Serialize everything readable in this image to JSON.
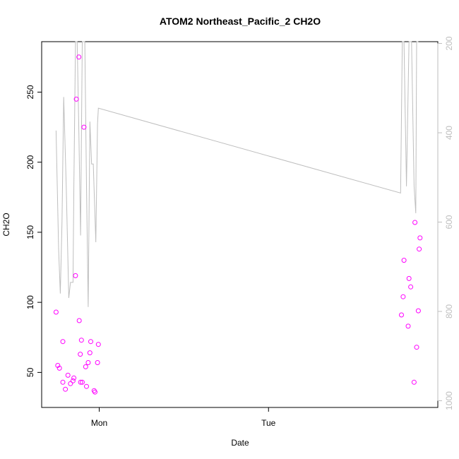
{
  "chart_data": {
    "type": "scatter",
    "title": "ATOM2 Northeast_Pacific_2 CH2O",
    "xlabel": "Date",
    "ylabel": "CH2O",
    "x_ticks": [
      {
        "label": "Mon",
        "value": 0
      },
      {
        "label": "Tue",
        "value": 1
      }
    ],
    "xlim": [
      -0.34,
      2.0
    ],
    "ylim": [
      25,
      286
    ],
    "y_ticks": [
      50,
      100,
      150,
      200,
      250
    ],
    "y2_ticks": [
      200,
      400,
      600,
      800,
      1000
    ],
    "y2lim": [
      1015,
      196
    ],
    "colors": {
      "points": "#ff00ff",
      "line": "#bebebe",
      "axes": "#000000",
      "right_axis": "#bebebe"
    },
    "series": [
      {
        "values": [
          {
            "x": -0.255,
            "y": 93
          },
          {
            "x": -0.245,
            "y": 55
          },
          {
            "x": -0.235,
            "y": 53
          },
          {
            "x": -0.215,
            "y": 72
          },
          {
            "x": -0.215,
            "y": 43
          },
          {
            "x": -0.2,
            "y": 38
          },
          {
            "x": -0.185,
            "y": 48
          },
          {
            "x": -0.17,
            "y": 42
          },
          {
            "x": -0.155,
            "y": 44
          },
          {
            "x": -0.15,
            "y": 46
          },
          {
            "x": -0.14,
            "y": 119
          },
          {
            "x": -0.135,
            "y": 245
          },
          {
            "x": -0.12,
            "y": 275
          },
          {
            "x": -0.118,
            "y": 87
          },
          {
            "x": -0.112,
            "y": 63
          },
          {
            "x": -0.11,
            "y": 43
          },
          {
            "x": -0.105,
            "y": 73
          },
          {
            "x": -0.1,
            "y": 43
          },
          {
            "x": -0.09,
            "y": 225
          },
          {
            "x": -0.08,
            "y": 54
          },
          {
            "x": -0.075,
            "y": 40
          },
          {
            "x": -0.065,
            "y": 57
          },
          {
            "x": -0.05,
            "y": 72
          },
          {
            "x": -0.055,
            "y": 64
          },
          {
            "x": -0.03,
            "y": 37
          },
          {
            "x": -0.025,
            "y": 36
          },
          {
            "x": -0.01,
            "y": 57
          },
          {
            "x": -0.005,
            "y": 70
          },
          {
            "x": 1.785,
            "y": 91
          },
          {
            "x": 1.795,
            "y": 104
          },
          {
            "x": 1.8,
            "y": 130
          },
          {
            "x": 1.825,
            "y": 83
          },
          {
            "x": 1.83,
            "y": 117
          },
          {
            "x": 1.84,
            "y": 111
          },
          {
            "x": 1.86,
            "y": 43
          },
          {
            "x": 1.865,
            "y": 157
          },
          {
            "x": 1.875,
            "y": 68
          },
          {
            "x": 1.885,
            "y": 94
          },
          {
            "x": 1.89,
            "y": 138
          },
          {
            "x": 1.895,
            "y": 146
          }
        ]
      }
    ],
    "secondary_series": [
      {
        "values": [
          {
            "x": -0.255,
            "y": 395
          },
          {
            "x": -0.24,
            "y": 660
          },
          {
            "x": -0.23,
            "y": 760
          },
          {
            "x": -0.22,
            "y": 600
          },
          {
            "x": -0.21,
            "y": 320
          },
          {
            "x": -0.195,
            "y": 520
          },
          {
            "x": -0.18,
            "y": 770
          },
          {
            "x": -0.17,
            "y": 735
          },
          {
            "x": -0.155,
            "y": 735
          },
          {
            "x": -0.15,
            "y": 520
          },
          {
            "x": -0.14,
            "y": 196
          },
          {
            "x": -0.13,
            "y": 196
          },
          {
            "x": -0.12,
            "y": 400
          },
          {
            "x": -0.11,
            "y": 630
          },
          {
            "x": -0.1,
            "y": 196
          },
          {
            "x": -0.085,
            "y": 196
          },
          {
            "x": -0.075,
            "y": 520
          },
          {
            "x": -0.065,
            "y": 790
          },
          {
            "x": -0.055,
            "y": 375
          },
          {
            "x": -0.045,
            "y": 470
          },
          {
            "x": -0.035,
            "y": 470
          },
          {
            "x": -0.02,
            "y": 645
          },
          {
            "x": -0.01,
            "y": 380
          },
          {
            "x": -0.005,
            "y": 345
          },
          {
            "x": 1.78,
            "y": 535
          },
          {
            "x": 1.79,
            "y": 196
          },
          {
            "x": 1.8,
            "y": 196
          },
          {
            "x": 1.815,
            "y": 520
          },
          {
            "x": 1.83,
            "y": 196
          },
          {
            "x": 1.845,
            "y": 196
          },
          {
            "x": 1.86,
            "y": 520
          },
          {
            "x": 1.87,
            "y": 580
          },
          {
            "x": 1.875,
            "y": 196
          },
          {
            "x": 1.885,
            "y": 196
          }
        ]
      }
    ]
  }
}
